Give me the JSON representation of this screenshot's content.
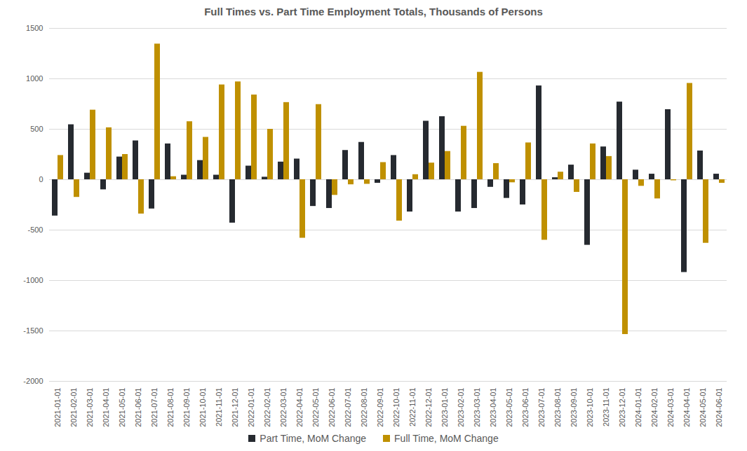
{
  "chart_data": {
    "type": "bar",
    "title": "Full Times vs. Part Time Employment Totals, Thousands of Persons",
    "categories": [
      "2021-01-01",
      "2021-02-01",
      "2021-03-01",
      "2021-04-01",
      "2021-05-01",
      "2021-06-01",
      "2021-07-01",
      "2021-08-01",
      "2021-09-01",
      "2021-10-01",
      "2021-11-01",
      "2021-12-01",
      "2022-01-01",
      "2022-02-01",
      "2022-03-01",
      "2022-04-01",
      "2022-05-01",
      "2022-06-01",
      "2022-07-01",
      "2022-08-01",
      "2022-09-01",
      "2022-10-01",
      "2022-11-01",
      "2022-12-01",
      "2023-01-01",
      "2023-02-01",
      "2023-03-01",
      "2023-04-01",
      "2023-05-01",
      "2023-06-01",
      "2023-07-01",
      "2023-08-01",
      "2023-09-01",
      "2023-10-01",
      "2023-11-01",
      "2023-12-01",
      "2024-01-01",
      "2024-02-01",
      "2024-03-01",
      "2024-04-01",
      "2024-05-01",
      "2024-06-01"
    ],
    "series": [
      {
        "name": "Part Time, MoM Change",
        "color": "#262a30",
        "values": [
          -360,
          545,
          65,
          -100,
          225,
          385,
          -290,
          355,
          45,
          190,
          45,
          -430,
          135,
          25,
          175,
          205,
          -265,
          -285,
          290,
          370,
          -35,
          240,
          -320,
          580,
          625,
          -320,
          -285,
          -75,
          -185,
          -250,
          930,
          20,
          145,
          -650,
          325,
          770,
          95,
          55,
          695,
          -920,
          285,
          55
        ]
      },
      {
        "name": "Full Time, MoM Change",
        "color": "#bf9000",
        "values": [
          240,
          -175,
          690,
          515,
          250,
          -340,
          1345,
          30,
          575,
          420,
          940,
          970,
          840,
          500,
          765,
          -580,
          745,
          -155,
          -50,
          -45,
          170,
          -410,
          50,
          165,
          280,
          530,
          1065,
          160,
          -30,
          365,
          -600,
          75,
          -125,
          355,
          230,
          -1535,
          -65,
          -190,
          -10,
          955,
          -630,
          -35
        ]
      }
    ],
    "ylim": [
      -2000,
      1500
    ],
    "yticks": [
      -2000,
      -1500,
      -1000,
      -500,
      0,
      500,
      1000,
      1500
    ],
    "grid": true,
    "legend": "bottom"
  }
}
